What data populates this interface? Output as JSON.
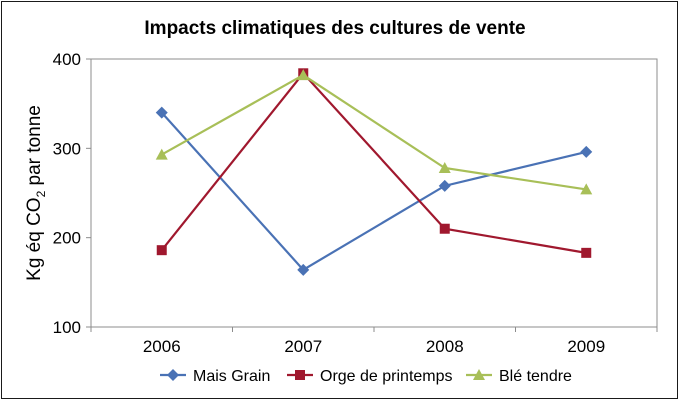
{
  "chart_data": {
    "type": "line",
    "title": "Impacts climatiques des cultures de vente",
    "ylabel_prefix": "Kg éq CO",
    "ylabel_sub": "2",
    "ylabel_suffix": " par tonne",
    "xlabel": "",
    "categories": [
      "2006",
      "2007",
      "2008",
      "2009"
    ],
    "ylim": [
      100,
      400
    ],
    "yticks": [
      "100",
      "200",
      "300",
      "400"
    ],
    "ytick_values": [
      100,
      200,
      300,
      400
    ],
    "grid": false,
    "legend_position": "bottom",
    "series": [
      {
        "name": "Mais Grain",
        "color": "#4a72b5",
        "marker": "diamond",
        "values": [
          340,
          164,
          258,
          296
        ]
      },
      {
        "name": "Orge de printemps",
        "color": "#a0182e",
        "marker": "square",
        "values": [
          186,
          384,
          210,
          183
        ]
      },
      {
        "name": "Blé tendre",
        "color": "#a8bf58",
        "marker": "triangle",
        "values": [
          293,
          382,
          278,
          254
        ]
      }
    ]
  }
}
